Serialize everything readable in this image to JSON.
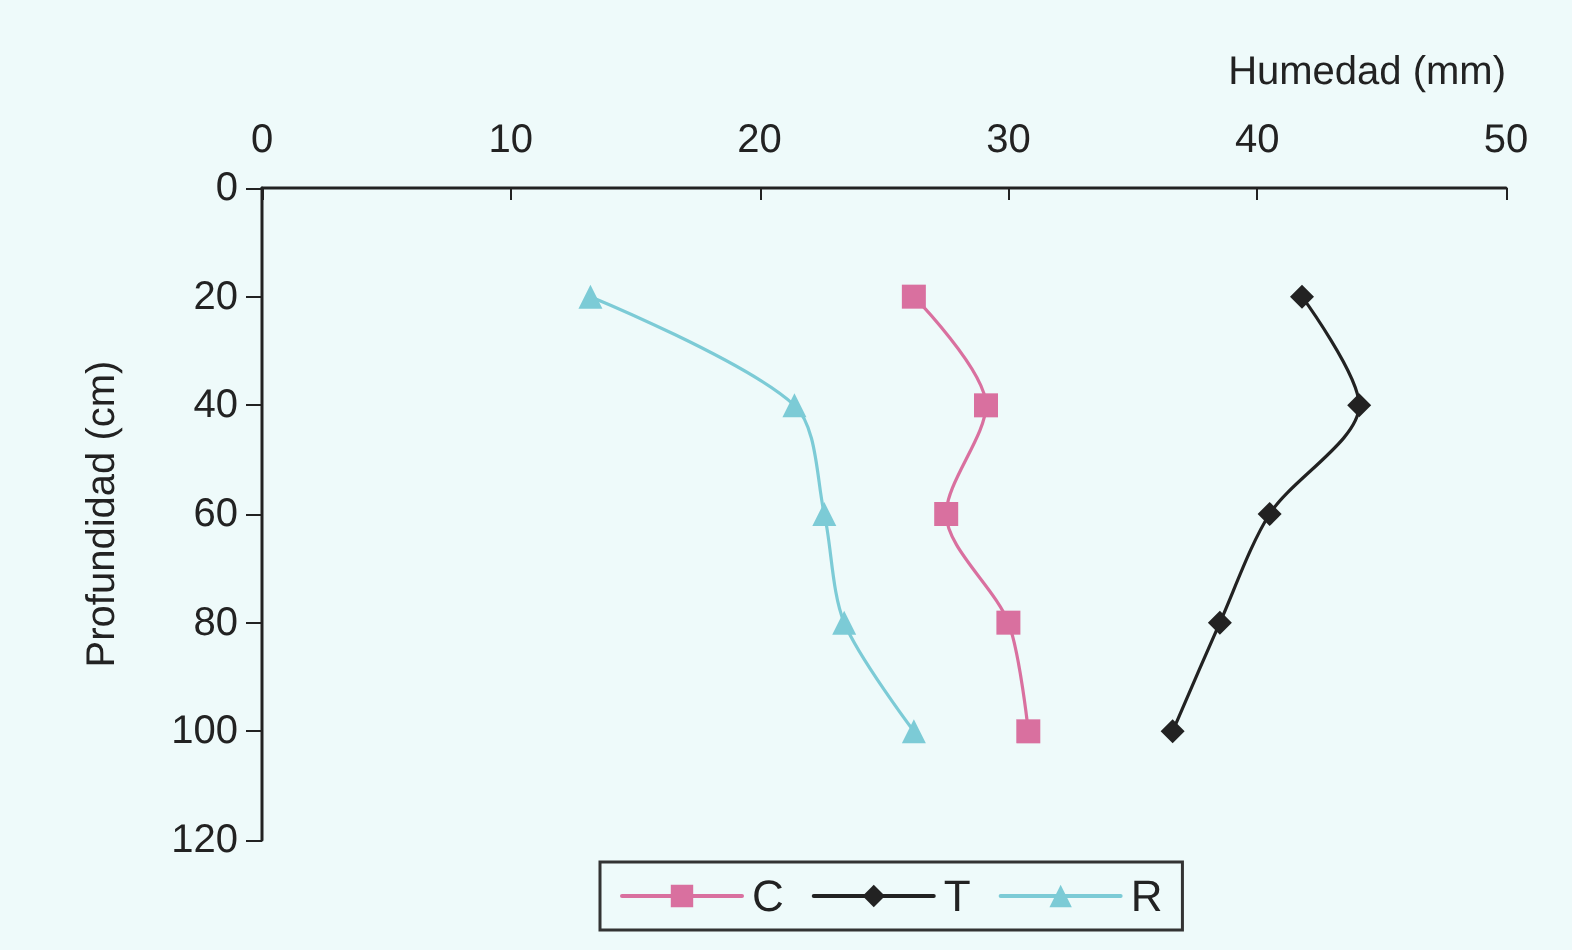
{
  "chart_data": {
    "type": "line",
    "xlabel": "Humedad (mm)",
    "ylabel": "Profundidad (cm)",
    "xlim": [
      0,
      50
    ],
    "xticks": [
      0,
      10,
      20,
      30,
      40,
      50
    ],
    "ylim": [
      120,
      0
    ],
    "yticks": [
      0,
      20,
      40,
      60,
      80,
      100,
      120
    ],
    "grid": false,
    "legend": "bottom",
    "series": [
      {
        "name": "C",
        "color": "#d9709f",
        "marker": "square",
        "x": [
          26.2,
          29.1,
          27.5,
          30.0,
          30.8
        ],
        "values": [
          20,
          40,
          60,
          80,
          100
        ]
      },
      {
        "name": "T",
        "color": "#222222",
        "marker": "diamond",
        "x": [
          41.8,
          44.1,
          40.5,
          38.5,
          36.6
        ],
        "values": [
          20,
          40,
          60,
          80,
          100
        ]
      },
      {
        "name": "R",
        "color": "#7ccbd6",
        "marker": "triangle",
        "x": [
          13.2,
          21.4,
          22.6,
          23.4,
          26.2
        ],
        "values": [
          20,
          40,
          60,
          80,
          100
        ]
      }
    ]
  }
}
